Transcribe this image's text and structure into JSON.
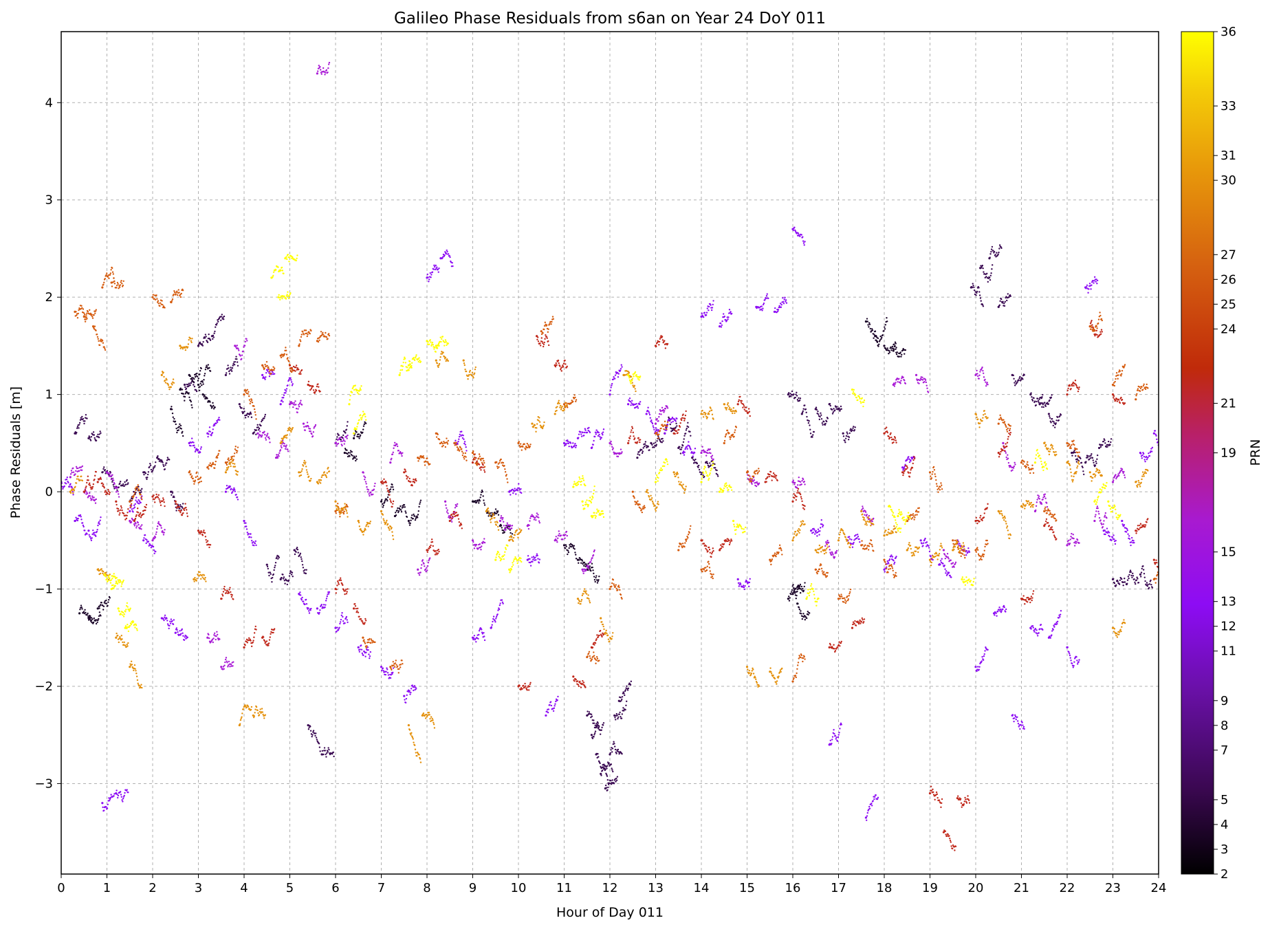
{
  "chart_data": {
    "type": "scatter",
    "title": "Galileo Phase Residuals from s6an on Year 24 DoY 011",
    "xlabel": "Hour of Day 011",
    "ylabel": "Phase Residuals [m]",
    "xlim": [
      0,
      24
    ],
    "ylim": [
      -3.93,
      4.73
    ],
    "x_ticks": [
      0,
      1,
      2,
      3,
      4,
      5,
      6,
      7,
      8,
      9,
      10,
      11,
      12,
      13,
      14,
      15,
      16,
      17,
      18,
      19,
      20,
      21,
      22,
      23,
      24
    ],
    "x_tick_labels": [
      "0",
      "1",
      "2",
      "3",
      "4",
      "5",
      "6",
      "7",
      "8",
      "9",
      "10",
      "11",
      "12",
      "13",
      "14",
      "15",
      "16",
      "17",
      "18",
      "19",
      "20",
      "21",
      "22",
      "23",
      "24"
    ],
    "y_ticks": [
      -3,
      -2,
      -1,
      0,
      1,
      2,
      3,
      4
    ],
    "y_tick_labels": [
      "−3",
      "−2",
      "−1",
      "0",
      "1",
      "2",
      "3",
      "4"
    ],
    "grid": true,
    "colorbar": {
      "label": "PRN",
      "colormap": "gnuplot",
      "range": [
        2,
        36
      ],
      "ticks": [
        2,
        3,
        4,
        5,
        7,
        8,
        9,
        11,
        12,
        13,
        15,
        19,
        21,
        24,
        25,
        26,
        27,
        30,
        31,
        33,
        36
      ],
      "tick_labels": [
        "2",
        "3",
        "4",
        "5",
        "7",
        "8",
        "9",
        "11",
        "12",
        "13",
        "15",
        "19",
        "21",
        "24",
        "25",
        "26",
        "27",
        "30",
        "31",
        "33",
        "36"
      ]
    },
    "series": [
      {
        "prn": 4,
        "color": "#3a0a52",
        "x": [
          0.3,
          0.6,
          0.9,
          1.2,
          1.5,
          1.8,
          2.1,
          2.4,
          2.7,
          3.0,
          3.3,
          3.6,
          3.9,
          4.2,
          4.5,
          4.8,
          5.1,
          5.4,
          5.7,
          6.0
        ],
        "y": [
          0.6,
          0.55,
          0.2,
          0.05,
          -0.1,
          0.2,
          0.35,
          0.0,
          1.1,
          1.5,
          1.6,
          1.2,
          0.9,
          0.6,
          -0.75,
          -0.9,
          -0.6,
          -2.4,
          -2.7,
          0.5
        ]
      },
      {
        "prn": 4,
        "color": "#3a0a52",
        "x": [
          11.5,
          11.6,
          11.7,
          11.8,
          11.9,
          12.0,
          12.1,
          12.2,
          12.6,
          12.9,
          13.2,
          13.5,
          13.8,
          14.1
        ],
        "y": [
          -2.3,
          -2.5,
          -2.7,
          -2.9,
          -3.05,
          -2.7,
          -2.3,
          -2.15,
          0.35,
          0.5,
          0.6,
          0.45,
          0.35,
          0.3
        ]
      },
      {
        "prn": 4,
        "color": "#3a0a52",
        "x": [
          15.9,
          16.2,
          16.5,
          16.8,
          17.1,
          19.9,
          20.1,
          20.3,
          20.5,
          20.8,
          21.2,
          21.4,
          21.6,
          22.1,
          22.4,
          22.7,
          23.0,
          23.3,
          23.6
        ],
        "y": [
          1.0,
          0.8,
          0.85,
          0.9,
          0.6,
          2.1,
          2.3,
          2.4,
          1.9,
          1.2,
          1.0,
          0.9,
          0.8,
          0.4,
          0.3,
          0.45,
          -0.9,
          -0.95,
          -0.85
        ]
      },
      {
        "prn": 3,
        "color": "#1a0428",
        "x": [
          0.4,
          0.6,
          0.8,
          2.4,
          2.6,
          2.8,
          3.0,
          3.1,
          6.2,
          6.4,
          7.0,
          7.3,
          7.6,
          9.0,
          9.3,
          9.6,
          11.0,
          11.3,
          11.5,
          15.9,
          16.0,
          16.1,
          17.6,
          17.8,
          18.0,
          18.2
        ],
        "y": [
          -1.25,
          -1.3,
          -1.2,
          0.85,
          1.05,
          1.2,
          1.1,
          1.0,
          0.4,
          0.55,
          -0.1,
          -0.25,
          -0.3,
          -0.1,
          -0.2,
          -0.35,
          -0.55,
          -0.7,
          -0.8,
          -1.1,
          -1.05,
          -1.15,
          1.75,
          1.6,
          1.5,
          1.45
        ]
      },
      {
        "prn": 11,
        "color": "#8d0cf4",
        "x": [
          0.0,
          0.3,
          0.6,
          0.9,
          1.2,
          1.5,
          1.8,
          2.2,
          2.5,
          2.8,
          3.2,
          3.6,
          4.0,
          4.4,
          4.8,
          5.2,
          5.6,
          6.0,
          6.5,
          7.0,
          7.5,
          8.0,
          8.3,
          8.6,
          9.0,
          9.4,
          9.8,
          10.2,
          10.6,
          11.0,
          11.3,
          11.6,
          12.0,
          12.4,
          12.8,
          13.2,
          13.6,
          14.0,
          14.4,
          14.8,
          15.2,
          15.6,
          16.0,
          16.4,
          16.8,
          17.2,
          17.6,
          18.0,
          18.4,
          18.8,
          19.2,
          19.6,
          20.0,
          20.4,
          20.8,
          21.2,
          21.6,
          22.0,
          22.4,
          22.8,
          23.2,
          23.6,
          23.9
        ],
        "y": [
          0.1,
          -0.3,
          -0.4,
          -3.2,
          -3.1,
          -0.2,
          -0.5,
          -1.3,
          -1.45,
          0.5,
          0.6,
          0.0,
          -0.3,
          1.2,
          0.9,
          -1.05,
          -1.2,
          -1.4,
          -1.6,
          -1.8,
          -2.1,
          2.2,
          2.4,
          0.5,
          -1.5,
          -1.4,
          0.0,
          -0.7,
          -2.3,
          0.5,
          0.55,
          0.45,
          1.0,
          0.9,
          0.8,
          0.6,
          0.4,
          1.8,
          1.7,
          -0.9,
          1.9,
          1.85,
          2.7,
          -0.4,
          -2.6,
          -0.5,
          -3.35,
          -0.8,
          0.25,
          -0.5,
          -0.75,
          -0.5,
          -1.8,
          -1.25,
          -2.3,
          -1.4,
          -1.5,
          -1.6,
          2.1,
          -0.4,
          -0.3,
          0.4,
          0.6
        ]
      },
      {
        "prn": 13,
        "color": "#a91ad6",
        "x": [
          0.2,
          0.5,
          1.0,
          1.5,
          2.0,
          3.2,
          3.5,
          3.8,
          4.3,
          4.7,
          5.0,
          5.3,
          5.6,
          6.0,
          6.6,
          7.2,
          7.8,
          8.4,
          9.0,
          9.6,
          10.2,
          10.8,
          11.4,
          12.0,
          13.0,
          14.0,
          15.0,
          16.0,
          16.7,
          17.5,
          18.2,
          18.7,
          19.3,
          20.0,
          20.6,
          21.3,
          22.0,
          22.6,
          23.0
        ],
        "y": [
          0.15,
          0.0,
          0.2,
          -0.3,
          -0.5,
          -1.5,
          -1.8,
          1.5,
          0.6,
          0.35,
          0.9,
          0.7,
          4.3,
          0.5,
          0.2,
          0.3,
          -0.8,
          -0.1,
          -0.5,
          -0.3,
          -0.35,
          -0.5,
          -0.8,
          0.5,
          0.7,
          0.4,
          0.2,
          0.1,
          -0.6,
          -0.2,
          1.1,
          1.2,
          -0.6,
          1.2,
          0.5,
          -0.2,
          -0.55,
          -0.3,
          0.1
        ]
      },
      {
        "prn": 19,
        "color": "#c0271a",
        "x": [
          0.5,
          0.8,
          1.2,
          1.6,
          2.0,
          2.5,
          3.0,
          3.5,
          4.0,
          4.4,
          5.0,
          5.4,
          6.0,
          6.4,
          7.0,
          7.5,
          8.0,
          8.5,
          9.0,
          10.0,
          10.4,
          10.8,
          11.2,
          11.6,
          12.4,
          13.0,
          13.4,
          14.0,
          14.4,
          14.8,
          15.4,
          16.0,
          16.8,
          17.3,
          18.0,
          18.4,
          19.0,
          19.3,
          19.6,
          20.0,
          20.5,
          21.0,
          21.5,
          22.0,
          22.5,
          23.0,
          23.5,
          23.9
        ],
        "y": [
          0.0,
          0.1,
          -0.1,
          -0.3,
          -0.05,
          -0.1,
          -0.4,
          -1.1,
          -1.6,
          -1.5,
          1.3,
          1.1,
          -1.0,
          -1.2,
          0.1,
          0.2,
          -0.6,
          -0.3,
          0.3,
          -2.0,
          1.6,
          1.3,
          -1.9,
          -1.6,
          0.5,
          1.5,
          0.6,
          -0.5,
          -0.6,
          0.9,
          0.1,
          -0.1,
          -1.6,
          -1.4,
          0.6,
          0.2,
          -3.1,
          -3.5,
          -3.15,
          -0.3,
          0.4,
          -1.1,
          -0.35,
          1.0,
          1.7,
          1.0,
          -0.4,
          -0.7
        ]
      },
      {
        "prn": 26,
        "color": "#d55a0c",
        "x": [
          0.3,
          0.5,
          0.7,
          0.9,
          1.1,
          1.5,
          2.0,
          2.4,
          2.8,
          3.2,
          3.6,
          4.0,
          4.4,
          4.8,
          5.2,
          5.6,
          6.0,
          6.6,
          7.2,
          7.8,
          8.2,
          8.6,
          9.0,
          9.5,
          10.0,
          10.5,
          11.0,
          11.5,
          12.0,
          12.5,
          13.0,
          13.5,
          14.0,
          14.5,
          15.0,
          15.5,
          16.0,
          16.5,
          17.0,
          17.5,
          18.0,
          18.5,
          19.0,
          19.5,
          20.0,
          20.5,
          21.0,
          21.5,
          22.0,
          22.5,
          23.0,
          23.5,
          23.9
        ],
        "y": [
          1.85,
          1.8,
          1.7,
          2.1,
          2.15,
          -0.1,
          2.0,
          1.95,
          0.2,
          0.25,
          0.3,
          1.0,
          1.3,
          1.4,
          1.5,
          1.55,
          -0.2,
          -1.5,
          -1.8,
          0.35,
          0.6,
          0.5,
          0.4,
          0.3,
          0.5,
          1.65,
          0.9,
          -1.7,
          -1.0,
          0.0,
          0.6,
          -0.6,
          -0.8,
          0.5,
          0.2,
          -0.7,
          -1.95,
          -0.8,
          -1.1,
          -0.55,
          -0.7,
          -0.3,
          0.2,
          -0.5,
          -0.6,
          0.7,
          0.3,
          -0.2,
          0.5,
          1.7,
          1.1,
          0.95,
          -0.9
        ]
      },
      {
        "prn": 30,
        "color": "#e4900a",
        "x": [
          0.2,
          0.8,
          1.2,
          1.5,
          2.2,
          2.6,
          2.9,
          3.6,
          3.9,
          4.2,
          4.8,
          5.2,
          5.6,
          6.0,
          6.5,
          7.0,
          7.6,
          7.9,
          8.2,
          8.8,
          9.3,
          9.8,
          10.3,
          10.8,
          11.3,
          11.8,
          12.3,
          12.8,
          13.4,
          14.0,
          14.5,
          15.0,
          15.5,
          16.0,
          16.5,
          17.0,
          17.5,
          18.0,
          18.5,
          19.0,
          19.5,
          20.0,
          20.5,
          21.0,
          21.5,
          22.0,
          22.5,
          23.0,
          23.5
        ],
        "y": [
          0.0,
          -0.8,
          -1.5,
          -1.8,
          1.2,
          1.5,
          -0.9,
          0.2,
          -2.4,
          -2.3,
          0.5,
          0.2,
          0.1,
          -0.1,
          -0.3,
          -0.2,
          -2.4,
          -2.3,
          1.35,
          1.35,
          -0.2,
          -0.5,
          0.7,
          0.8,
          -1.1,
          -1.3,
          1.2,
          0.0,
          0.2,
          0.8,
          0.9,
          -1.8,
          -1.85,
          -0.5,
          -0.6,
          -0.5,
          -0.2,
          -0.45,
          -0.6,
          -0.7,
          -0.6,
          0.8,
          -0.2,
          -0.15,
          0.5,
          0.3,
          0.2,
          -1.4,
          0.1
        ]
      },
      {
        "prn": 36,
        "color": "#ffff00",
        "x": [
          0.95,
          1.1,
          1.25,
          1.4,
          4.6,
          4.75,
          4.9,
          6.3,
          6.4,
          7.4,
          7.6,
          8.0,
          8.2,
          9.5,
          9.8,
          11.2,
          11.4,
          11.6,
          12.4,
          13.0,
          14.0,
          14.4,
          14.7,
          16.3,
          17.3,
          18.1,
          18.3,
          19.7,
          21.3,
          22.6,
          22.9
        ],
        "y": [
          -0.85,
          -1.0,
          -1.2,
          -1.4,
          2.2,
          2.0,
          2.4,
          0.9,
          0.6,
          1.2,
          1.3,
          1.55,
          1.5,
          -0.7,
          -0.8,
          0.05,
          -0.1,
          -0.25,
          1.2,
          0.1,
          0.1,
          0.0,
          -0.3,
          -1.1,
          1.05,
          -0.15,
          -0.25,
          -0.9,
          0.3,
          -0.1,
          -0.1
        ]
      }
    ]
  }
}
